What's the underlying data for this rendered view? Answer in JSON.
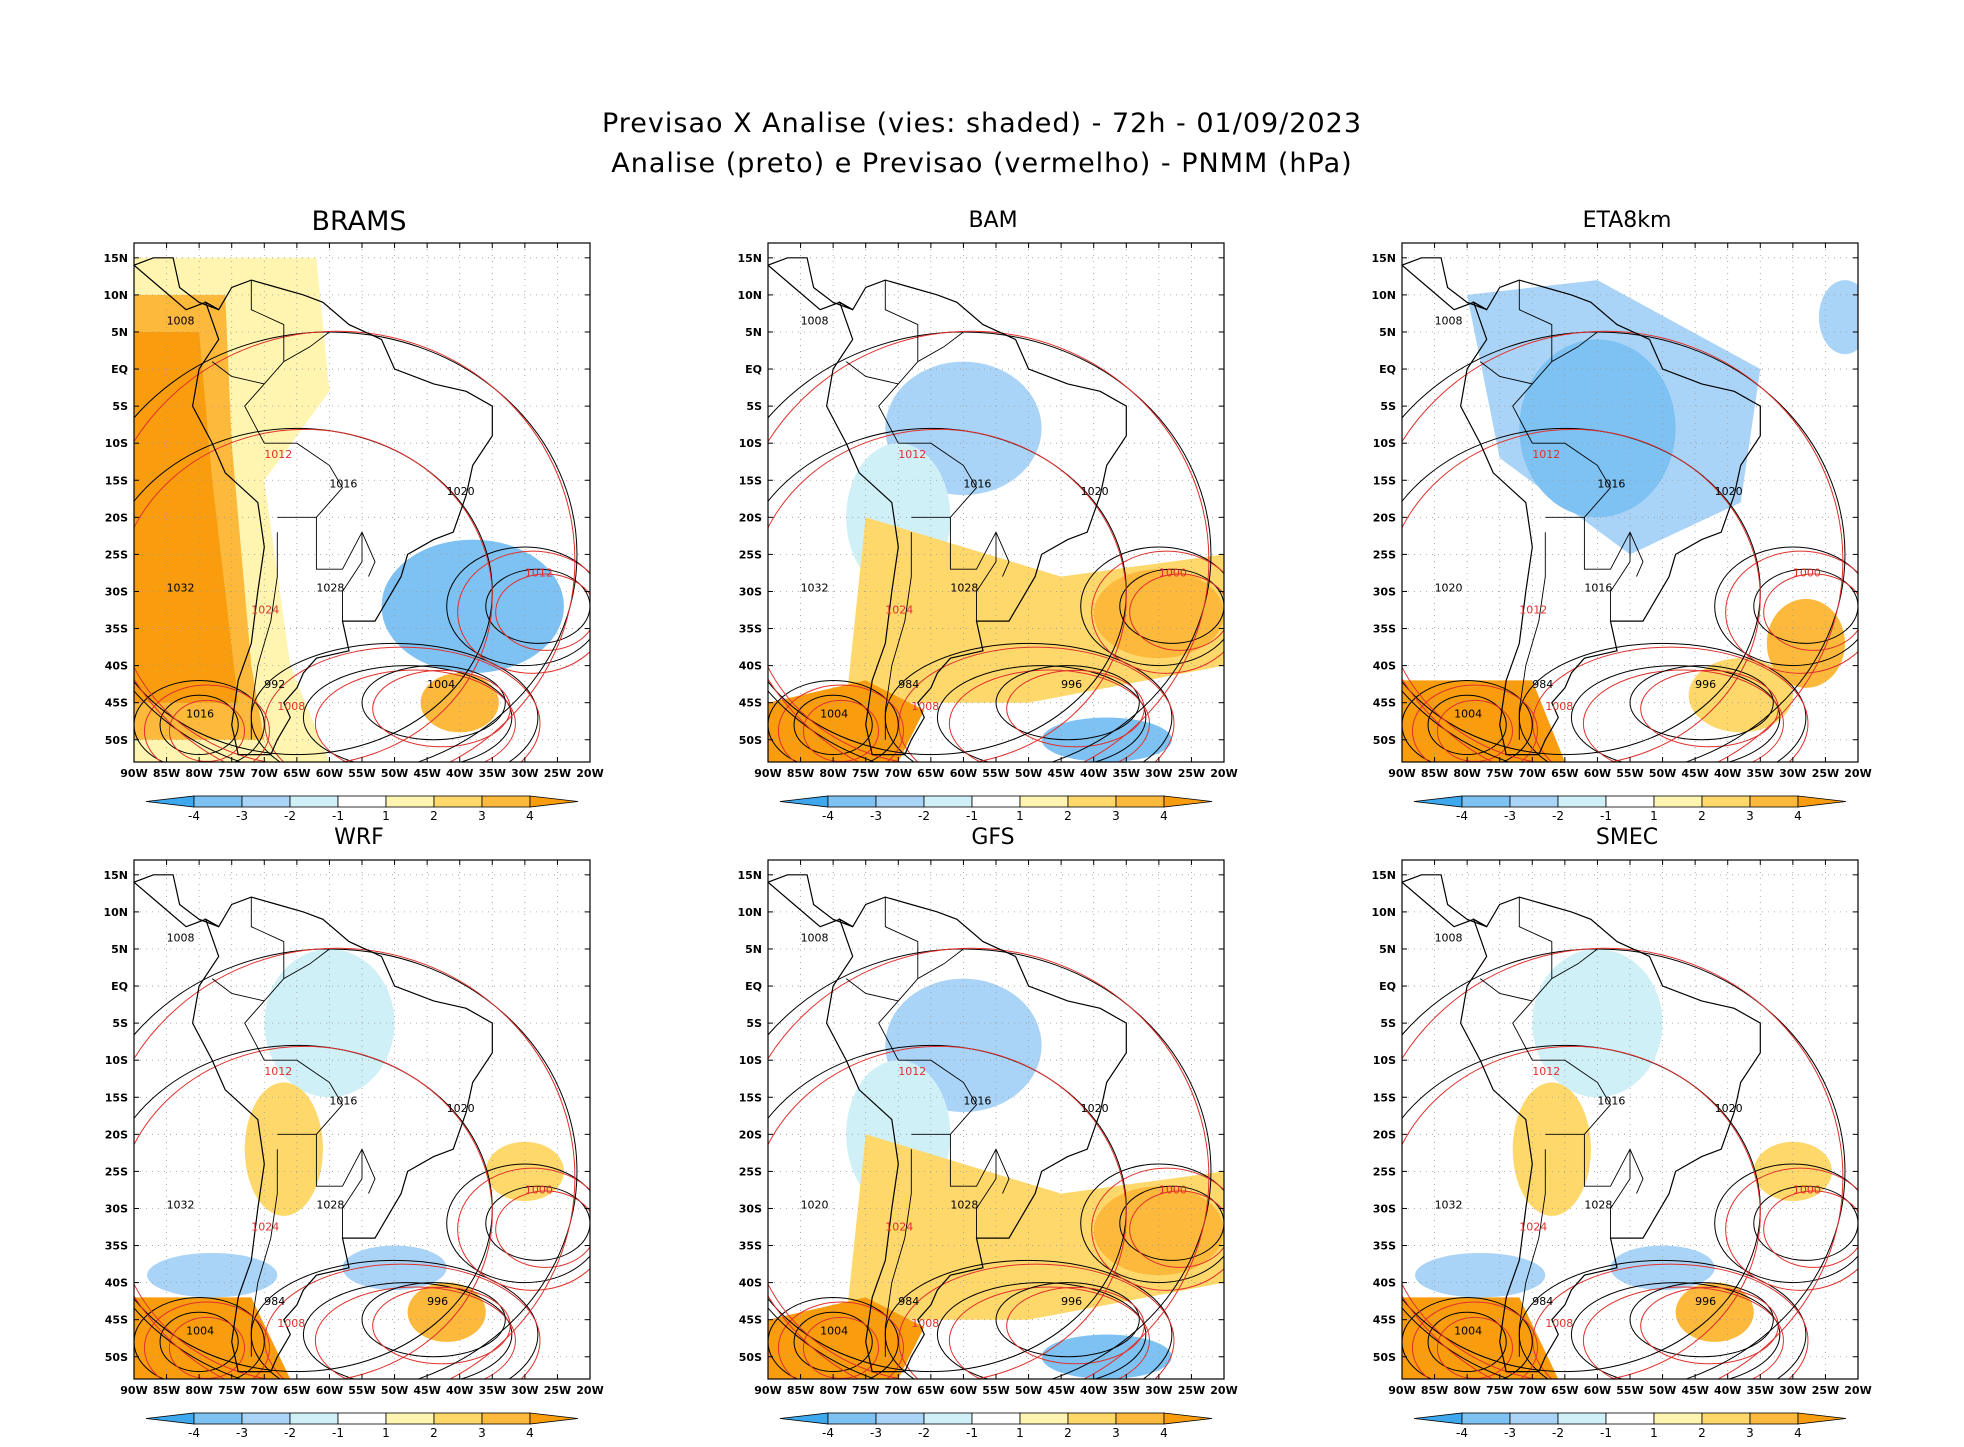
{
  "title": {
    "line1": "Previsao X Analise (vies: shaded) - 72h - 01/09/2023",
    "line2": "Analise (preto) e Previsao (vermelho) - PNMM (hPa)"
  },
  "map_axes": {
    "x_ticks": [
      "90W",
      "85W",
      "80W",
      "75W",
      "70W",
      "65W",
      "60W",
      "55W",
      "50W",
      "45W",
      "40W",
      "35W",
      "30W",
      "25W",
      "20W"
    ],
    "y_ticks": [
      "15N",
      "10N",
      "5N",
      "EQ",
      "5S",
      "10S",
      "15S",
      "20S",
      "25S",
      "30S",
      "35S",
      "40S",
      "45S",
      "50S"
    ],
    "lon_range": [
      -90,
      -20
    ],
    "lat_range": [
      -53,
      17
    ]
  },
  "colorbar": {
    "labels": [
      "-4",
      "-3",
      "-2",
      "-1",
      "1",
      "2",
      "3",
      "4"
    ],
    "colors": [
      "#3ea8ee",
      "#7dc2f3",
      "#aad4f7",
      "#d0f0f8",
      "#ffffff",
      "#fff5b0",
      "#fed86a",
      "#fdb93c",
      "#f99d0e"
    ]
  },
  "panels": [
    {
      "name": "BRAMS",
      "bias": "warm",
      "isobars": [
        "1008",
        "1012",
        "1016",
        "1020",
        "1024",
        "1028",
        "1032",
        "1012",
        "1004",
        "992",
        "1008",
        "1016"
      ]
    },
    {
      "name": "BAM",
      "bias": "cool-north",
      "isobars": [
        "1008",
        "1012",
        "1016",
        "1020",
        "1024",
        "1028",
        "1032",
        "1000",
        "996",
        "984",
        "1008",
        "1004"
      ]
    },
    {
      "name": "ETA8km",
      "bias": "cool",
      "isobars": [
        "1008",
        "1012",
        "1016",
        "1020",
        "1012",
        "1016",
        "1020",
        "1000",
        "996",
        "984",
        "1008",
        "1004"
      ]
    },
    {
      "name": "WRF",
      "bias": "mixed",
      "isobars": [
        "1008",
        "1012",
        "1016",
        "1020",
        "1024",
        "1028",
        "1032",
        "1000",
        "996",
        "984",
        "1008",
        "1004"
      ]
    },
    {
      "name": "GFS",
      "bias": "cool-north",
      "isobars": [
        "1008",
        "1012",
        "1016",
        "1020",
        "1024",
        "1028",
        "1020",
        "1000",
        "996",
        "984",
        "1008",
        "1004"
      ]
    },
    {
      "name": "SMEC",
      "bias": "mixed",
      "isobars": [
        "1008",
        "1012",
        "1016",
        "1020",
        "1024",
        "1028",
        "1032",
        "1000",
        "996",
        "984",
        "1008",
        "1004"
      ]
    }
  ]
}
